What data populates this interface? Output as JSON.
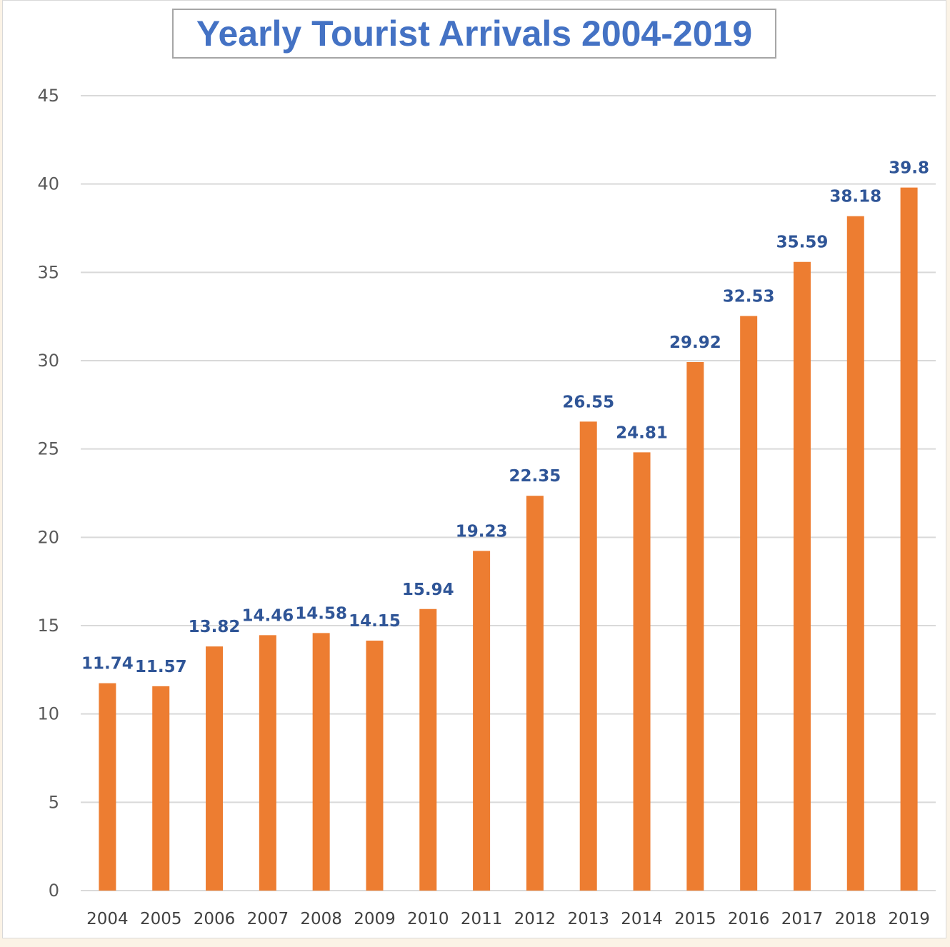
{
  "chart_data": {
    "type": "bar",
    "title": "Yearly Tourist Arrivals 2004-2019",
    "xlabel": "",
    "ylabel": "",
    "categories": [
      "2004",
      "2005",
      "2006",
      "2007",
      "2008",
      "2009",
      "2010",
      "2011",
      "2012",
      "2013",
      "2014",
      "2015",
      "2016",
      "2017",
      "2018",
      "2019"
    ],
    "values": [
      11.74,
      11.57,
      13.82,
      14.46,
      14.58,
      14.15,
      15.94,
      19.23,
      22.35,
      26.55,
      24.81,
      29.92,
      32.53,
      35.59,
      38.18,
      39.8
    ],
    "data_labels": [
      "11.74",
      "11.57",
      "13.82",
      "14.46",
      "14.58",
      "14.15",
      "15.94",
      "19.23",
      "22.35",
      "26.55",
      "24.81",
      "29.92",
      "32.53",
      "35.59",
      "38.18",
      "39.8"
    ],
    "ylim": [
      0,
      45
    ],
    "yticks": [
      0,
      5,
      10,
      15,
      20,
      25,
      30,
      35,
      40,
      45
    ],
    "grid": true,
    "legend": "none",
    "bar_color": "#ed7d31",
    "label_color": "#2f5597",
    "title_color": "#4472c4"
  }
}
